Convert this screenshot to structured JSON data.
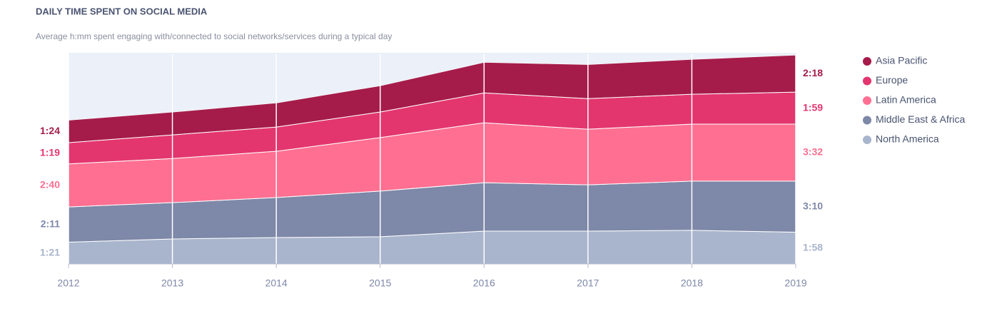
{
  "chart_data": {
    "type": "stacked_area",
    "title": "DAILY TIME SPENT ON SOCIAL MEDIA",
    "subtitle": "Average h:mm spent engaging with/connected to social networks/services during a typical day",
    "categories": [
      "2012",
      "2013",
      "2014",
      "2015",
      "2016",
      "2017",
      "2018",
      "2019"
    ],
    "ylim": [
      0,
      780
    ],
    "grid": true,
    "legend": "right",
    "series": [
      {
        "name": "Asia Pacific",
        "color": "#a51c4a",
        "values": [
          84,
          85,
          90,
          98,
          114,
          127,
          130,
          138
        ],
        "value_labels": [
          "1:24",
          null,
          null,
          null,
          null,
          null,
          null,
          "2:18"
        ]
      },
      {
        "name": "Europe",
        "color": "#e3366f",
        "values": [
          79,
          88,
          90,
          95,
          111,
          114,
          111,
          119
        ],
        "value_labels": [
          "1:19",
          null,
          null,
          null,
          null,
          null,
          null,
          "1:59"
        ]
      },
      {
        "name": "Latin America",
        "color": "#ff6f91",
        "values": [
          160,
          164,
          172,
          199,
          223,
          207,
          212,
          212
        ],
        "value_labels": [
          "2:40",
          null,
          null,
          null,
          null,
          null,
          null,
          "3:32"
        ]
      },
      {
        "name": "Middle East & Africa",
        "color": "#7e88a8",
        "values": [
          131,
          135,
          149,
          170,
          180,
          172,
          183,
          190
        ],
        "value_labels": [
          "2:11",
          null,
          null,
          null,
          null,
          null,
          null,
          "3:10"
        ]
      },
      {
        "name": "North America",
        "color": "#a9b5cd",
        "values": [
          81,
          93,
          98,
          101,
          122,
          122,
          125,
          118
        ],
        "value_labels": [
          "1:21",
          null,
          null,
          null,
          null,
          null,
          null,
          "1:58"
        ]
      }
    ]
  }
}
